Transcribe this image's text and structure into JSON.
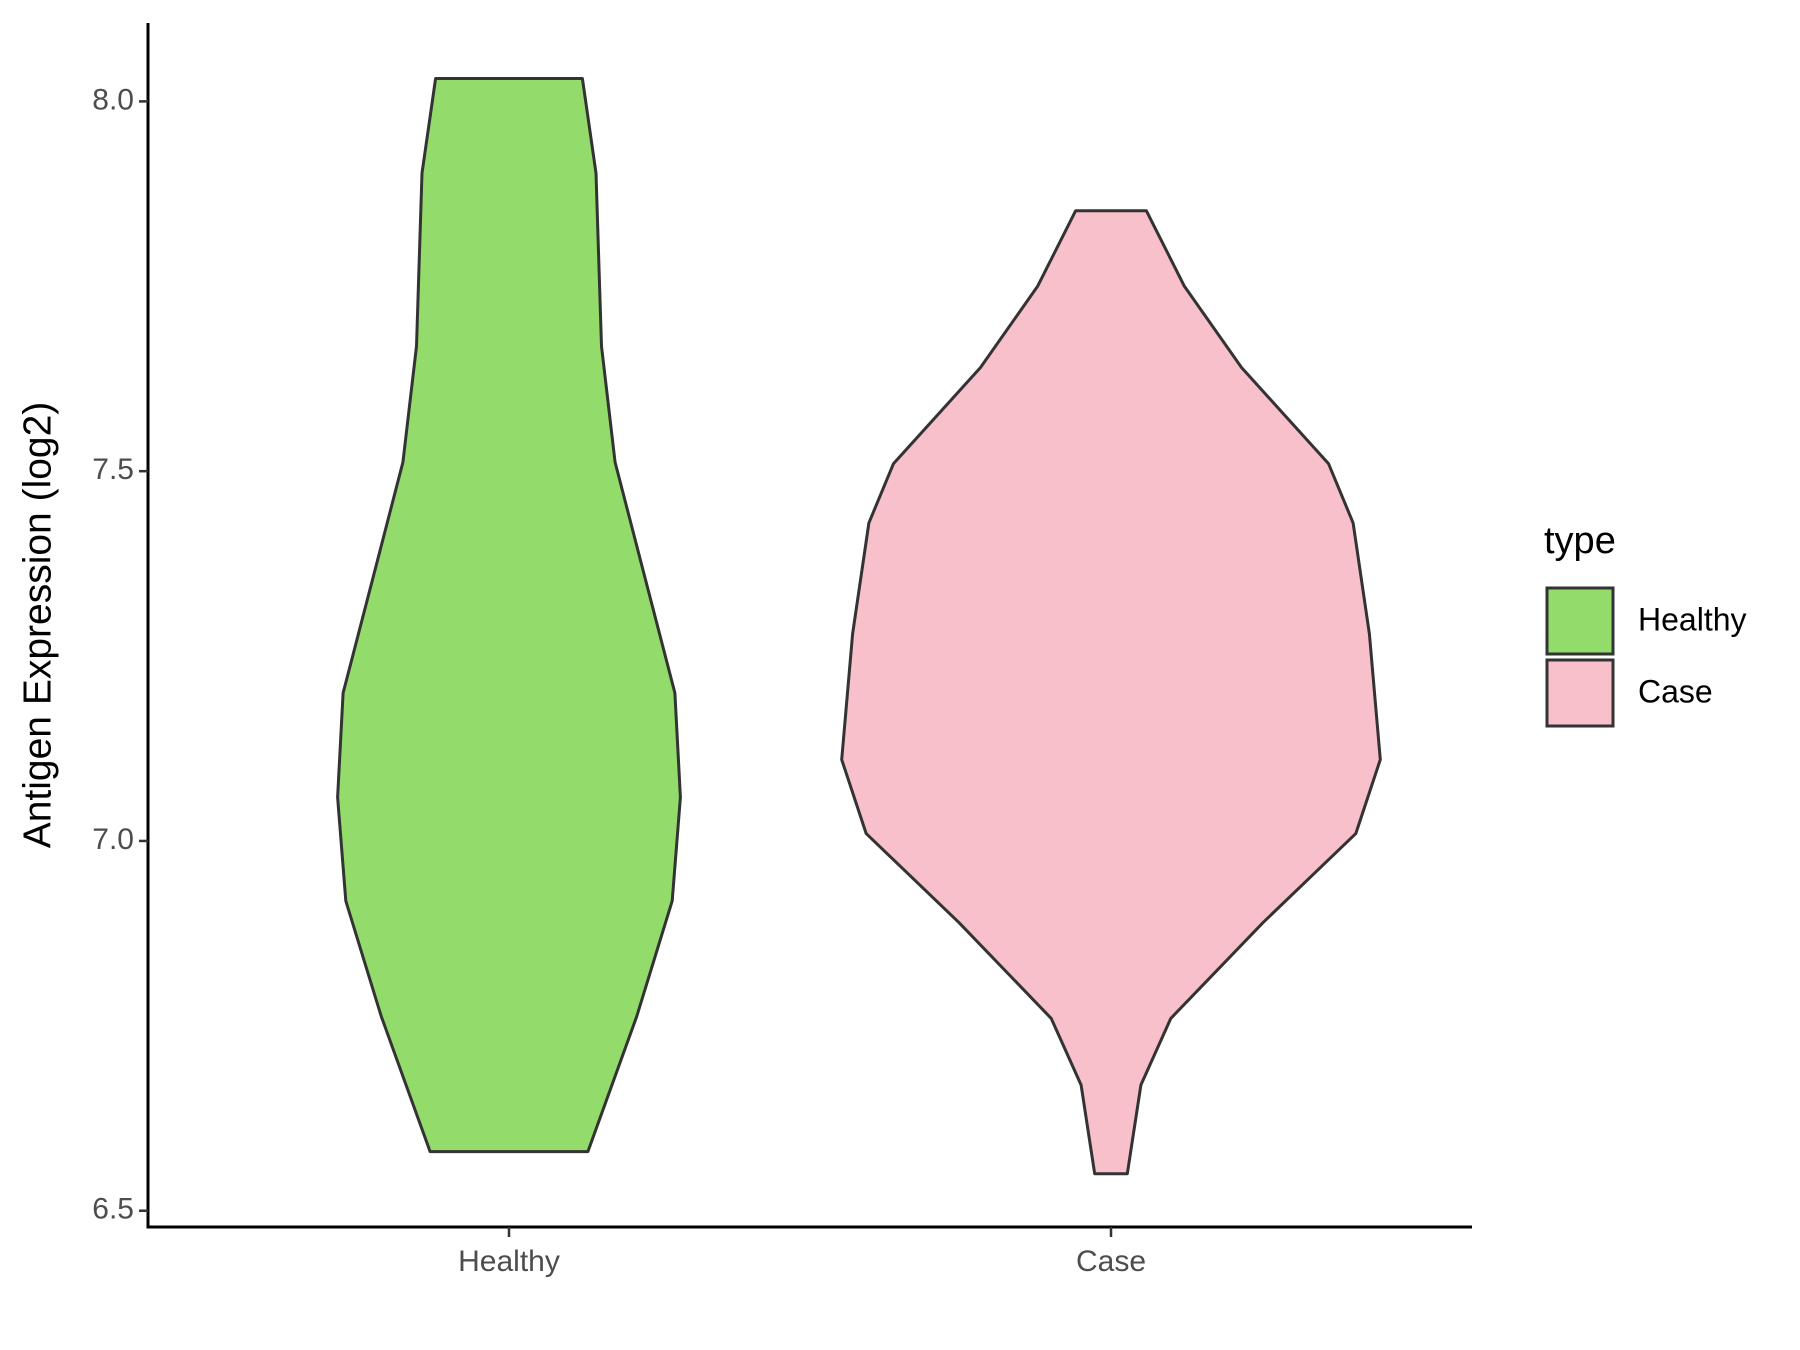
{
  "chart_data": {
    "type": "violin",
    "y_label": "Antigen Expression (log2)",
    "categories": [
      "Healthy",
      "Case"
    ],
    "legend_title": "type",
    "ylim": [
      6.478,
      8.106
    ],
    "yticks": [
      {
        "value": 6.5,
        "label": "6.5"
      },
      {
        "value": 7,
        "label": "7.0"
      },
      {
        "value": 7.5,
        "label": "7.5"
      },
      {
        "value": 8,
        "label": "8.0"
      }
    ],
    "series": [
      {
        "name": "Healthy",
        "color": "#93dc6b",
        "y": [
          8.031,
          7.903,
          7.669,
          7.512,
          7.356,
          7.2,
          7.059,
          6.919,
          6.763,
          6.58
        ],
        "density": [
          0.27,
          0.32,
          0.34,
          0.39,
          0.5,
          0.61,
          0.63,
          0.6,
          0.47,
          0.29
        ]
      },
      {
        "name": "Case",
        "color": "#f7c0cb",
        "y": [
          7.852,
          7.75,
          7.64,
          7.51,
          7.43,
          7.28,
          7.11,
          7.01,
          6.89,
          6.76,
          6.67,
          6.55
        ],
        "density": [
          0.13,
          0.27,
          0.48,
          0.8,
          0.89,
          0.95,
          0.99,
          0.9,
          0.56,
          0.22,
          0.11,
          0.06
        ]
      }
    ]
  }
}
